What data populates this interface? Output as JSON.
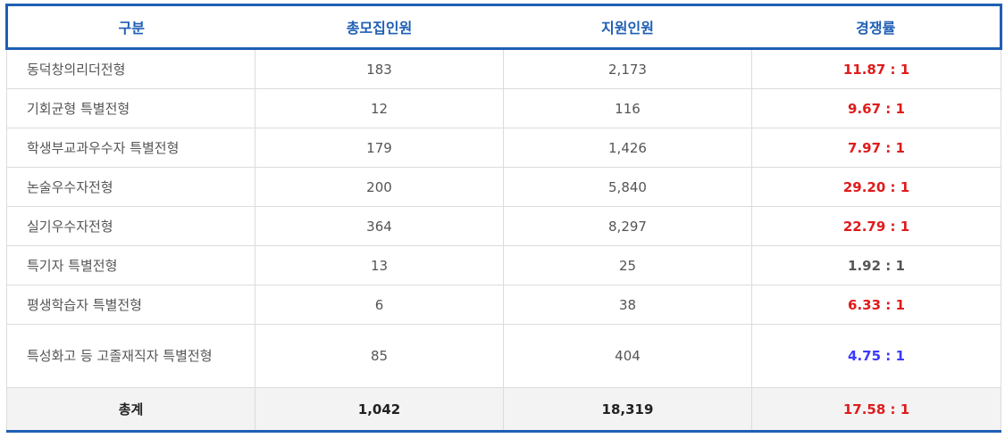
{
  "headers": [
    "구분",
    "총모집인원",
    "지원인원",
    "경쟁률"
  ],
  "rows": [
    {
      "category": "동덕창의리더전형",
      "quota": "183",
      "applicants": "2,173",
      "ratio": "11.87 : 1",
      "ratio_color": "red"
    },
    {
      "category": "기회균형 특별전형",
      "quota": "12",
      "applicants": "116",
      "ratio": "9.67 : 1",
      "ratio_color": "red"
    },
    {
      "category": "학생부교과우수자 특별전형",
      "quota": "179",
      "applicants": "1,426",
      "ratio": "7.97 : 1",
      "ratio_color": "red"
    },
    {
      "category": "논술우수자전형",
      "quota": "200",
      "applicants": "5,840",
      "ratio": "29.20 : 1",
      "ratio_color": "red"
    },
    {
      "category": "실기우수자전형",
      "quota": "364",
      "applicants": "8,297",
      "ratio": "22.79 : 1",
      "ratio_color": "red"
    },
    {
      "category": "특기자 특별전형",
      "quota": "13",
      "applicants": "25",
      "ratio": "1.92 : 1",
      "ratio_color": "gray"
    },
    {
      "category": "평생학습자 특별전형",
      "quota": "6",
      "applicants": "38",
      "ratio": "6.33 : 1",
      "ratio_color": "red"
    },
    {
      "category": "특성화고 등 고졸재직자 특별전형",
      "quota": "85",
      "applicants": "404",
      "ratio": "4.75 : 1",
      "ratio_color": "blue"
    }
  ],
  "total": {
    "label": "총계",
    "quota": "1,042",
    "applicants": "18,319",
    "ratio": "17.58 : 1"
  },
  "colors": {
    "header_text": "#1f5fb4",
    "border": "#1f5fb4",
    "red": "#e01b1b",
    "blue": "#3a3aff",
    "gray": "#555555"
  }
}
